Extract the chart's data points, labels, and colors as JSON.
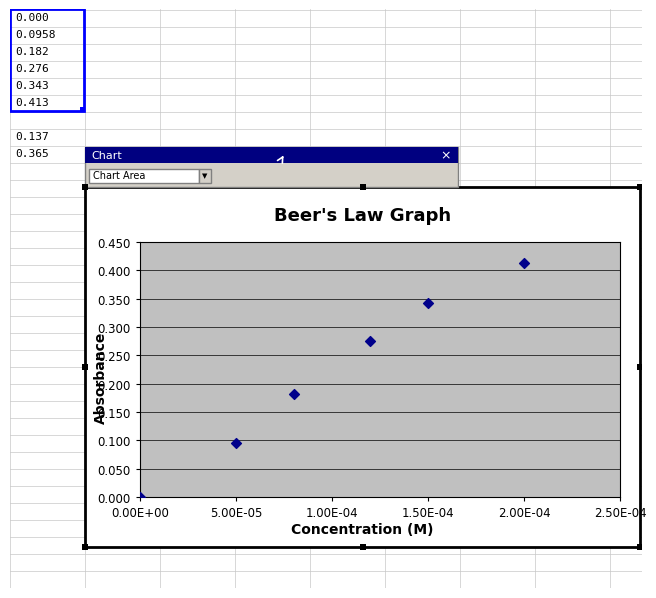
{
  "title": "Beer's Law Graph",
  "xlabel": "Concentration (M)",
  "ylabel": "Absorbance",
  "x_data": [
    0.0,
    5e-05,
    8e-05,
    0.00012,
    0.00015,
    0.0002
  ],
  "y_data": [
    0.0,
    0.0958,
    0.182,
    0.276,
    0.343,
    0.413
  ],
  "xlim": [
    0.0,
    0.00025
  ],
  "ylim": [
    0.0,
    0.45
  ],
  "yticks": [
    0.0,
    0.05,
    0.1,
    0.15,
    0.2,
    0.25,
    0.3,
    0.35,
    0.4,
    0.45
  ],
  "plot_bg_color": "#C0C0C0",
  "chart_area_bg": "#FFFFFF",
  "spreadsheet_bg": "#FFFFFF",
  "grid_color": "#C8C8C8",
  "cell_data_col_a": [
    "0.000",
    "0.0958",
    "0.182",
    "0.276",
    "0.343",
    "0.413"
  ],
  "cell_data_col_a_2": [
    "0.137",
    "0.365"
  ],
  "marker_color": "#00008B",
  "marker_style": "D",
  "marker_size": 5,
  "title_fontsize": 13,
  "label_fontsize": 10,
  "tick_fontsize": 8.5,
  "toolbar_bg": "#D4D0C8",
  "toolbar_title_bg": "#000080",
  "toolbar_title_color": "#FFFFFF",
  "toolbar_title": "Chart",
  "fig_bg": "#D4D0C8"
}
